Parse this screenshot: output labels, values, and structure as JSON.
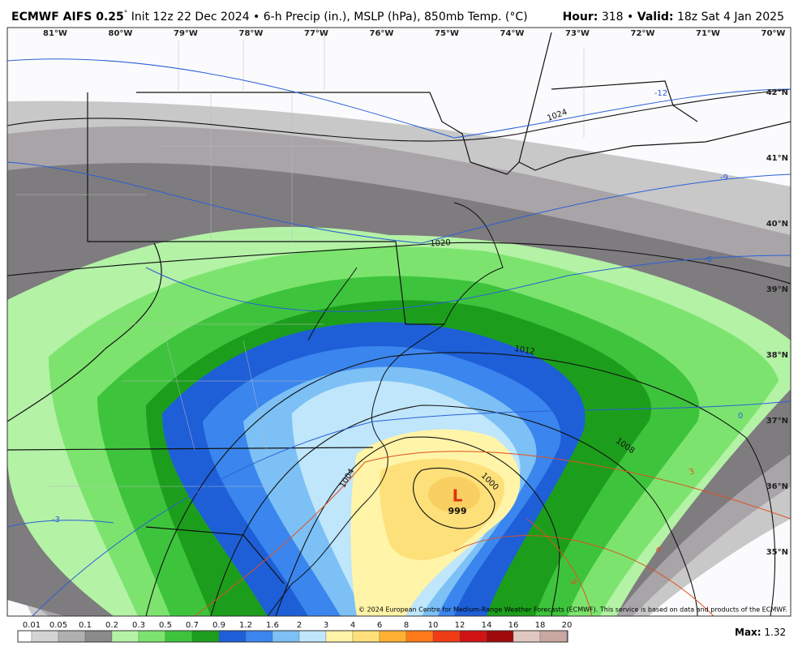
{
  "header": {
    "title_bold": "ECMWF AIFS 0.25",
    "title_degree": "°",
    "title_rest": " Init 12z 22 Dec 2024 • 6-h Precip (in.), MSLP (hPa), 850mb Temp. (°C)",
    "hour_label": "Hour:",
    "hour": "318",
    "separator": "•",
    "valid_label": "Valid:",
    "valid": "18z Sat 4 Jan 2025"
  },
  "map": {
    "longitudes": [
      "81°W",
      "80°W",
      "79°W",
      "78°W",
      "77°W",
      "76°W",
      "75°W",
      "74°W",
      "73°W",
      "72°W",
      "71°W",
      "70°W"
    ],
    "latitudes": [
      "42°N",
      "41°N",
      "40°N",
      "39°N",
      "38°N",
      "37°N",
      "36°N",
      "35°N"
    ],
    "isobar_labels": [
      "1024",
      "1020",
      "1012",
      "1008",
      "1004",
      "1000"
    ],
    "cold_isotherm_labels": [
      "-12",
      "-9",
      "-6",
      "0",
      "-3"
    ],
    "warm_isotherm_labels": [
      "3",
      "6",
      "9"
    ],
    "low": {
      "symbol": "L",
      "pressure": "999"
    },
    "credit": "© 2024 European Centre for Medium-Range Weather Forecasts (ECMWF). This service is based on data and products of the ECMWF."
  },
  "legend": {
    "levels": [
      "0.01",
      "0.05",
      "0.1",
      "0.2",
      "0.3",
      "0.5",
      "0.7",
      "0.9",
      "1.2",
      "1.6",
      "2",
      "3",
      "4",
      "6",
      "8",
      "10",
      "12",
      "14",
      "16",
      "18",
      "20"
    ],
    "max_label": "Max:",
    "max": "1.32"
  }
}
